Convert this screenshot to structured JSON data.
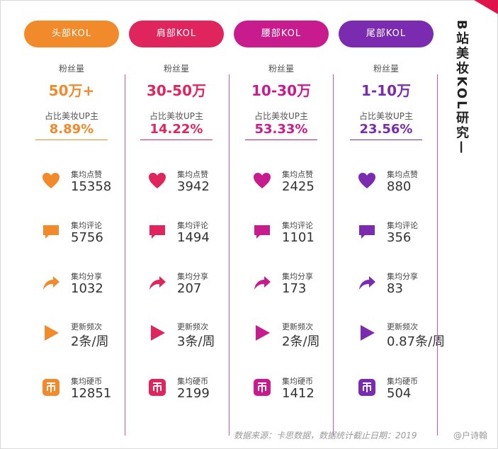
{
  "title": "B站美妆KOL研究—",
  "footer": "数据来源：卡思数据，数据统计截止日期：2019",
  "watermark": "@户诗翰",
  "columns": [
    {
      "header": "头部KOL",
      "color": "#f08a2a",
      "fans_label": "粉丝量",
      "fans_value": "50万+",
      "ratio_label": "占比美妆UP主",
      "ratio_value": "8.89%",
      "metrics": [
        {
          "icon": "heart-icon",
          "label": "集均点赞",
          "value": "15358"
        },
        {
          "icon": "comment-icon",
          "label": "集均评论",
          "value": "5756"
        },
        {
          "icon": "share-icon",
          "label": "集均分享",
          "value": "1032"
        },
        {
          "icon": "play-icon",
          "label": "更新频次",
          "value": "2条/周"
        },
        {
          "icon": "coin-icon",
          "label": "集均硬币",
          "value": "12851"
        }
      ]
    },
    {
      "header": "肩部KOL",
      "color": "#e0245e",
      "fans_label": "粉丝量",
      "fans_value": "30-50万",
      "ratio_label": "占比美妆UP主",
      "ratio_value": "14.22%",
      "metrics": [
        {
          "icon": "heart-icon",
          "label": "集均点赞",
          "value": "3942"
        },
        {
          "icon": "comment-icon",
          "label": "集均评论",
          "value": "1494"
        },
        {
          "icon": "share-icon",
          "label": "集均分享",
          "value": "207"
        },
        {
          "icon": "play-icon",
          "label": "更新频次",
          "value": "3条/周"
        },
        {
          "icon": "coin-icon",
          "label": "集均硬币",
          "value": "2199"
        }
      ]
    },
    {
      "header": "腰部KOL",
      "color": "#c81c8e",
      "fans_label": "粉丝量",
      "fans_value": "10-30万",
      "ratio_label": "占比美妆UP主",
      "ratio_value": "53.33%",
      "metrics": [
        {
          "icon": "heart-icon",
          "label": "集均点赞",
          "value": "2425"
        },
        {
          "icon": "comment-icon",
          "label": "集均评论",
          "value": "1101"
        },
        {
          "icon": "share-icon",
          "label": "集均分享",
          "value": "173"
        },
        {
          "icon": "play-icon",
          "label": "更新频次",
          "value": "2条/周"
        },
        {
          "icon": "coin-icon",
          "label": "集均硬币",
          "value": "1412"
        }
      ]
    },
    {
      "header": "尾部KOL",
      "color": "#7a2bb0",
      "fans_label": "粉丝量",
      "fans_value": "1-10万",
      "ratio_label": "占比美妆UP主",
      "ratio_value": "23.56%",
      "metrics": [
        {
          "icon": "heart-icon",
          "label": "集均点赞",
          "value": "880"
        },
        {
          "icon": "comment-icon",
          "label": "集均评论",
          "value": "356"
        },
        {
          "icon": "share-icon",
          "label": "集均分享",
          "value": "83"
        },
        {
          "icon": "play-icon",
          "label": "更新频次",
          "value": "0.87条/周"
        },
        {
          "icon": "coin-icon",
          "label": "集均硬币",
          "value": "504"
        }
      ]
    }
  ]
}
